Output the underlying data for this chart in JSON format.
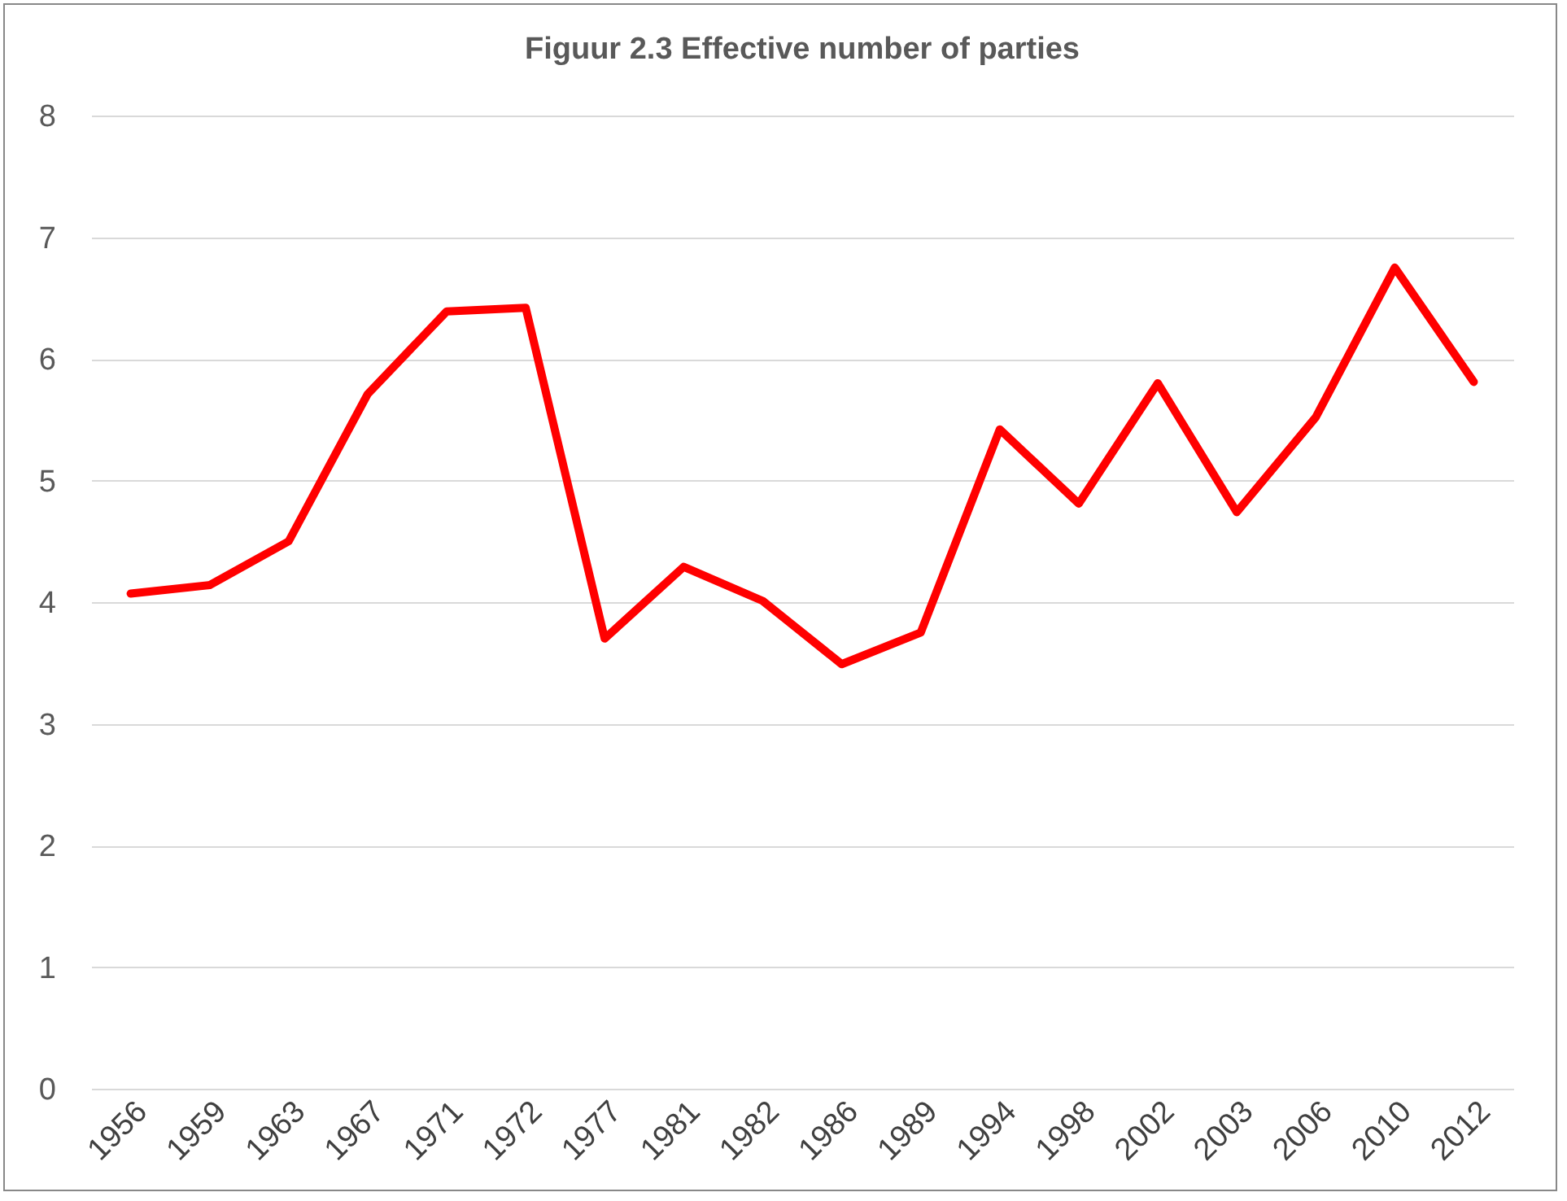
{
  "chart_data": {
    "type": "line",
    "title": "Figuur 2.3 Effective number of parties",
    "categories": [
      "1956",
      "1959",
      "1963",
      "1967",
      "1971",
      "1972",
      "1977",
      "1981",
      "1982",
      "1986",
      "1989",
      "1994",
      "1998",
      "2002",
      "2003",
      "2006",
      "2010",
      "2012"
    ],
    "series": [
      {
        "color": "#ff0000",
        "values": [
          4.07,
          4.14,
          4.5,
          5.71,
          6.39,
          6.42,
          3.7,
          4.29,
          4.01,
          3.49,
          3.75,
          5.42,
          4.81,
          5.8,
          4.74,
          5.52,
          6.75,
          5.81
        ]
      }
    ],
    "ylim": [
      0,
      8
    ],
    "yticks": [
      0,
      1,
      2,
      3,
      4,
      5,
      6,
      7,
      8
    ],
    "grid": "y",
    "legend": false,
    "marker": "none",
    "line_style": "solid"
  }
}
